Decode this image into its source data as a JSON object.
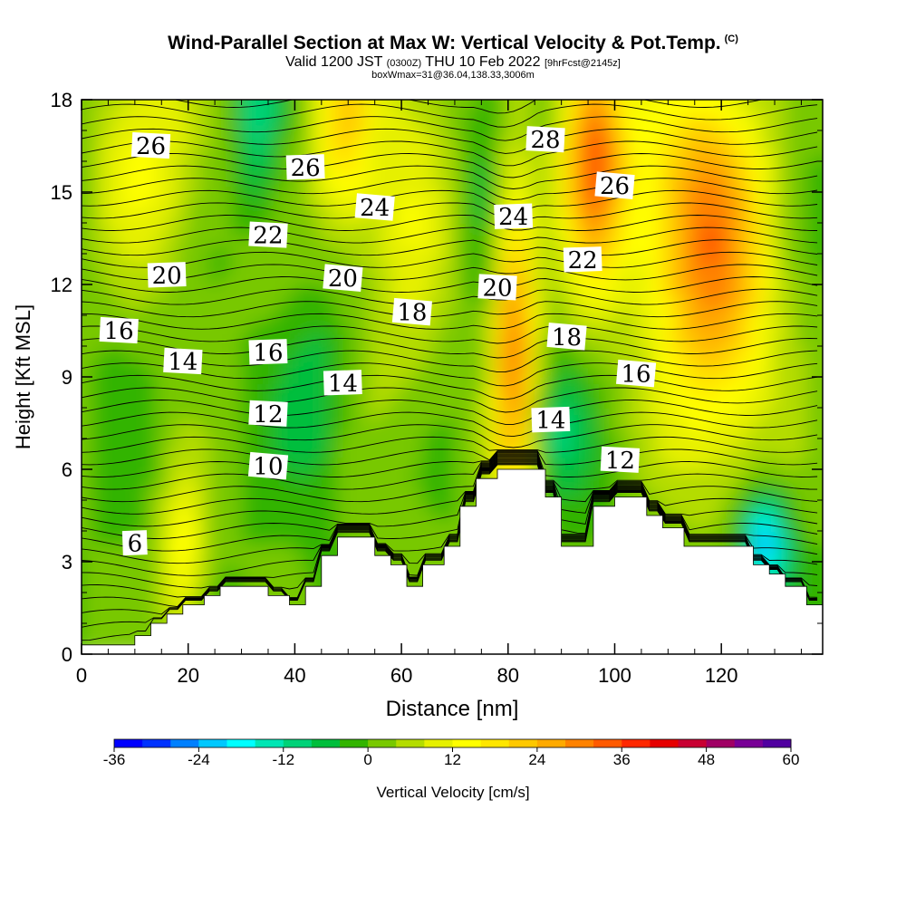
{
  "title": {
    "main": "Wind-Parallel Section at Max W: Vertical Velocity & Pot.Temp.",
    "main_suffix": "(C)",
    "valid_a": "Valid 1200 JST",
    "valid_z": "(0300Z)",
    "valid_b": "THU 10 Feb 2022",
    "valid_c": "[9hrFcst@2145z]",
    "box": "boxWmax=31@36.04,138.33,3006m"
  },
  "chart_data": {
    "type": "heatmap",
    "xlabel": "Distance [nm]",
    "ylabel": "Height [Kft MSL]",
    "xlim": [
      0,
      139
    ],
    "ylim": [
      0,
      18
    ],
    "x_ticks": [
      "0",
      "20",
      "40",
      "60",
      "80",
      "100",
      "120"
    ],
    "y_ticks": [
      "0",
      "3",
      "6",
      "9",
      "12",
      "15",
      "18"
    ],
    "colorbar": {
      "label": "Vertical Velocity [cm/s]",
      "ticks": [
        "-36",
        "-24",
        "-12",
        "0",
        "12",
        "24",
        "36",
        "48",
        "60"
      ],
      "range": [
        -36,
        60
      ],
      "colors": [
        "#0000ff",
        "#0032ff",
        "#0080ff",
        "#00c8ff",
        "#00ffff",
        "#00e6b4",
        "#00d278",
        "#00be3c",
        "#32b400",
        "#78c800",
        "#b4dc00",
        "#e6f000",
        "#ffff00",
        "#ffe600",
        "#ffc800",
        "#ffaa00",
        "#ff8200",
        "#ff5a00",
        "#ff2800",
        "#e60000",
        "#c80032",
        "#a00064",
        "#780096",
        "#5000a0"
      ]
    },
    "terrain_nm_kft": [
      [
        0,
        0.3
      ],
      [
        10,
        0.3
      ],
      [
        10,
        0.6
      ],
      [
        13,
        0.6
      ],
      [
        13,
        1.0
      ],
      [
        16,
        1.0
      ],
      [
        16,
        1.3
      ],
      [
        19,
        1.3
      ],
      [
        19,
        1.6
      ],
      [
        23,
        1.6
      ],
      [
        23,
        1.9
      ],
      [
        26,
        1.9
      ],
      [
        26,
        2.2
      ],
      [
        35,
        2.2
      ],
      [
        35,
        1.9
      ],
      [
        39,
        1.9
      ],
      [
        39,
        1.6
      ],
      [
        42,
        1.6
      ],
      [
        42,
        2.2
      ],
      [
        45,
        2.2
      ],
      [
        45,
        3.2
      ],
      [
        48,
        3.2
      ],
      [
        48,
        3.8
      ],
      [
        55,
        3.8
      ],
      [
        55,
        3.2
      ],
      [
        58,
        3.2
      ],
      [
        58,
        2.9
      ],
      [
        61,
        2.9
      ],
      [
        61,
        2.2
      ],
      [
        64,
        2.2
      ],
      [
        64,
        2.9
      ],
      [
        68,
        2.9
      ],
      [
        68,
        3.5
      ],
      [
        71,
        3.5
      ],
      [
        71,
        4.8
      ],
      [
        74,
        4.8
      ],
      [
        74,
        5.7
      ],
      [
        78,
        5.7
      ],
      [
        78,
        6.0
      ],
      [
        87,
        6.0
      ],
      [
        87,
        5.1
      ],
      [
        90,
        5.1
      ],
      [
        90,
        3.5
      ],
      [
        96,
        3.5
      ],
      [
        96,
        4.8
      ],
      [
        100,
        4.8
      ],
      [
        100,
        5.1
      ],
      [
        106,
        5.1
      ],
      [
        106,
        4.5
      ],
      [
        109,
        4.5
      ],
      [
        109,
        4.1
      ],
      [
        113,
        4.1
      ],
      [
        113,
        3.5
      ],
      [
        126,
        3.5
      ],
      [
        126,
        2.9
      ],
      [
        129,
        2.9
      ],
      [
        129,
        2.6
      ],
      [
        132,
        2.6
      ],
      [
        132,
        2.2
      ],
      [
        136,
        2.2
      ],
      [
        136,
        1.6
      ],
      [
        139,
        1.6
      ]
    ],
    "wmax_center": {
      "x_nm": 80,
      "z_kft": 10,
      "w_cms": 31
    },
    "isentrope_labels": [
      {
        "text": "26",
        "x": 13,
        "z": 16.5
      },
      {
        "text": "26",
        "x": 42,
        "z": 15.8
      },
      {
        "text": "24",
        "x": 55,
        "z": 14.5
      },
      {
        "text": "28",
        "x": 87,
        "z": 16.7
      },
      {
        "text": "24",
        "x": 81,
        "z": 14.2
      },
      {
        "text": "26",
        "x": 100,
        "z": 15.2
      },
      {
        "text": "22",
        "x": 35,
        "z": 13.6
      },
      {
        "text": "20",
        "x": 16,
        "z": 12.3
      },
      {
        "text": "20",
        "x": 49,
        "z": 12.2
      },
      {
        "text": "20",
        "x": 78,
        "z": 11.9
      },
      {
        "text": "22",
        "x": 94,
        "z": 12.8
      },
      {
        "text": "18",
        "x": 62,
        "z": 11.1
      },
      {
        "text": "16",
        "x": 7,
        "z": 10.5
      },
      {
        "text": "16",
        "x": 35,
        "z": 9.8
      },
      {
        "text": "18",
        "x": 91,
        "z": 10.3
      },
      {
        "text": "14",
        "x": 19,
        "z": 9.5
      },
      {
        "text": "14",
        "x": 49,
        "z": 8.8
      },
      {
        "text": "16",
        "x": 104,
        "z": 9.1
      },
      {
        "text": "12",
        "x": 35,
        "z": 7.8
      },
      {
        "text": "14",
        "x": 88,
        "z": 7.6
      },
      {
        "text": "10",
        "x": 35,
        "z": 6.1
      },
      {
        "text": "12",
        "x": 101,
        "z": 6.3
      },
      {
        "text": "6",
        "x": 10,
        "z": 3.6
      }
    ]
  }
}
